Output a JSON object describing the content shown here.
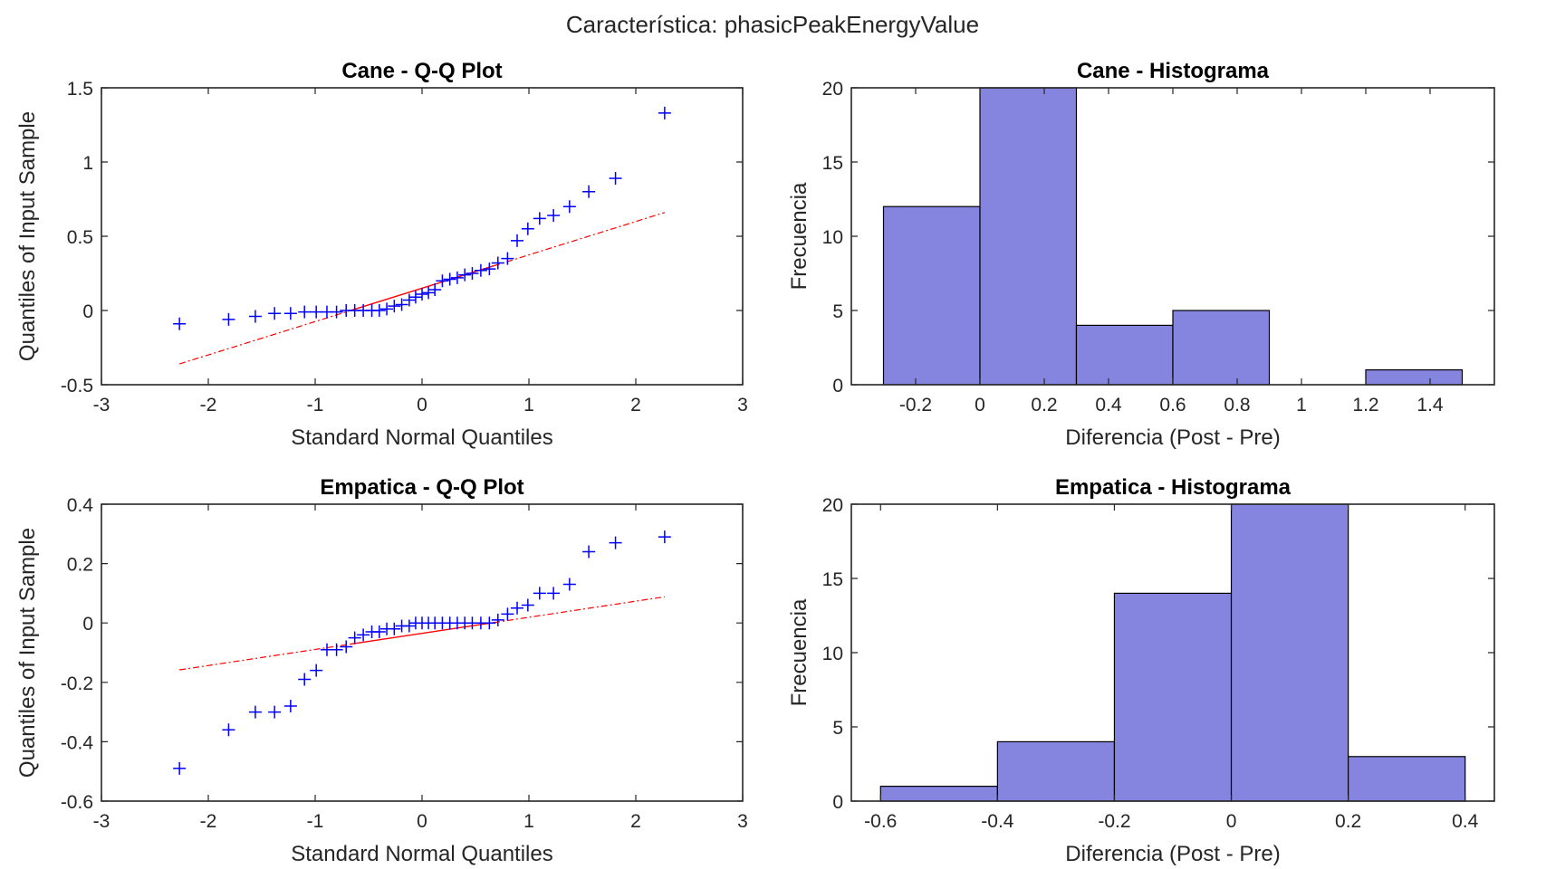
{
  "figure": {
    "suptitle": "Característica: phasicPeakEnergyValue"
  },
  "colors": {
    "qq_points": "#0000ff",
    "ref_line": "#ff0000",
    "hist_fill": "#8585e0",
    "axis": "#262626"
  },
  "chart_data": [
    {
      "type": "scatter",
      "title": "Cane - Q-Q Plot",
      "xlabel": "Standard Normal Quantiles",
      "ylabel": "Quantiles of Input Sample",
      "xlim": [
        -3,
        3
      ],
      "ylim": [
        -0.5,
        1.5
      ],
      "xticks": [
        -3,
        -2,
        -1,
        0,
        1,
        2,
        3
      ],
      "yticks": [
        -0.5,
        0,
        0.5,
        1,
        1.5
      ],
      "ytick_labels": [
        "-0.5",
        "0",
        "0.5",
        "1",
        "1.5"
      ],
      "x": [
        -2.27,
        -1.81,
        -1.56,
        -1.38,
        -1.23,
        -1.1,
        -0.99,
        -0.89,
        -0.8,
        -0.71,
        -0.63,
        -0.55,
        -0.47,
        -0.4,
        -0.33,
        -0.26,
        -0.19,
        -0.12,
        -0.06,
        0.0,
        0.06,
        0.12,
        0.19,
        0.26,
        0.33,
        0.4,
        0.47,
        0.55,
        0.63,
        0.71,
        0.8,
        0.89,
        0.99,
        1.1,
        1.23,
        1.38,
        1.56,
        1.81,
        2.27
      ],
      "y": [
        -0.09,
        -0.06,
        -0.04,
        -0.02,
        -0.02,
        -0.01,
        -0.01,
        -0.01,
        -0.01,
        0.0,
        0.0,
        0.0,
        0.0,
        0.0,
        0.01,
        0.03,
        0.04,
        0.07,
        0.09,
        0.11,
        0.12,
        0.14,
        0.2,
        0.21,
        0.22,
        0.24,
        0.25,
        0.27,
        0.28,
        0.32,
        0.35,
        0.47,
        0.55,
        0.62,
        0.64,
        0.7,
        0.8,
        0.89,
        1.33
      ],
      "reference_line": {
        "x": [
          -2.27,
          2.27
        ],
        "y": [
          -0.36,
          0.66
        ],
        "solid_x_range": [
          -0.67,
          0.67
        ]
      }
    },
    {
      "type": "bar",
      "title": "Cane - Histograma",
      "xlabel": "Diferencia (Post - Pre)",
      "ylabel": "Frecuencia",
      "xlim": [
        -0.4,
        1.6
      ],
      "ylim": [
        0,
        20
      ],
      "xticks": [
        -0.2,
        0,
        0.2,
        0.4,
        0.6,
        0.8,
        1,
        1.2,
        1.4
      ],
      "xtick_labels": [
        "-0.2",
        "0",
        "0.2",
        "0.4",
        "0.6",
        "0.8",
        "1",
        "1.2",
        "1.4"
      ],
      "yticks": [
        0,
        5,
        10,
        15,
        20
      ],
      "bin_edges": [
        -0.3,
        0.0,
        0.3,
        0.6,
        0.9,
        1.2,
        1.5
      ],
      "values": [
        12,
        20,
        4,
        5,
        0,
        1
      ]
    },
    {
      "type": "scatter",
      "title": "Empatica - Q-Q Plot",
      "xlabel": "Standard Normal Quantiles",
      "ylabel": "Quantiles of Input Sample",
      "xlim": [
        -3,
        3
      ],
      "ylim": [
        -0.6,
        0.4
      ],
      "xticks": [
        -3,
        -2,
        -1,
        0,
        1,
        2,
        3
      ],
      "yticks": [
        -0.6,
        -0.4,
        -0.2,
        0,
        0.2,
        0.4
      ],
      "ytick_labels": [
        "-0.6",
        "-0.4",
        "-0.2",
        "0",
        "0.2",
        "0.4"
      ],
      "x": [
        -2.27,
        -1.81,
        -1.56,
        -1.38,
        -1.23,
        -1.1,
        -0.99,
        -0.89,
        -0.8,
        -0.71,
        -0.63,
        -0.55,
        -0.47,
        -0.4,
        -0.33,
        -0.26,
        -0.19,
        -0.12,
        -0.06,
        0.0,
        0.06,
        0.12,
        0.19,
        0.26,
        0.33,
        0.4,
        0.47,
        0.55,
        0.63,
        0.71,
        0.8,
        0.89,
        0.99,
        1.1,
        1.23,
        1.38,
        1.56,
        1.81,
        2.27
      ],
      "y": [
        -0.49,
        -0.36,
        -0.3,
        -0.3,
        -0.28,
        -0.19,
        -0.16,
        -0.09,
        -0.09,
        -0.08,
        -0.05,
        -0.04,
        -0.03,
        -0.03,
        -0.02,
        -0.02,
        -0.01,
        -0.01,
        0.0,
        0.0,
        0.0,
        0.0,
        0.0,
        0.0,
        0.0,
        0.0,
        0.0,
        0.0,
        0.0,
        0.01,
        0.03,
        0.05,
        0.06,
        0.1,
        0.1,
        0.13,
        0.24,
        0.27,
        0.29
      ],
      "reference_line": {
        "x": [
          -2.27,
          2.27
        ],
        "y": [
          -0.158,
          0.088
        ],
        "solid_x_range": [
          -0.67,
          0.67
        ]
      }
    },
    {
      "type": "bar",
      "title": "Empatica - Histograma",
      "xlabel": "Diferencia (Post - Pre)",
      "ylabel": "Frecuencia",
      "xlim": [
        -0.65,
        0.45
      ],
      "ylim": [
        0,
        20
      ],
      "xticks": [
        -0.6,
        -0.4,
        -0.2,
        0,
        0.2,
        0.4
      ],
      "xtick_labels": [
        "-0.6",
        "-0.4",
        "-0.2",
        "0",
        "0.2",
        "0.4"
      ],
      "yticks": [
        0,
        5,
        10,
        15,
        20
      ],
      "bin_edges": [
        -0.6,
        -0.4,
        -0.2,
        0.0,
        0.2,
        0.4
      ],
      "values": [
        1,
        4,
        14,
        20,
        3
      ]
    }
  ]
}
